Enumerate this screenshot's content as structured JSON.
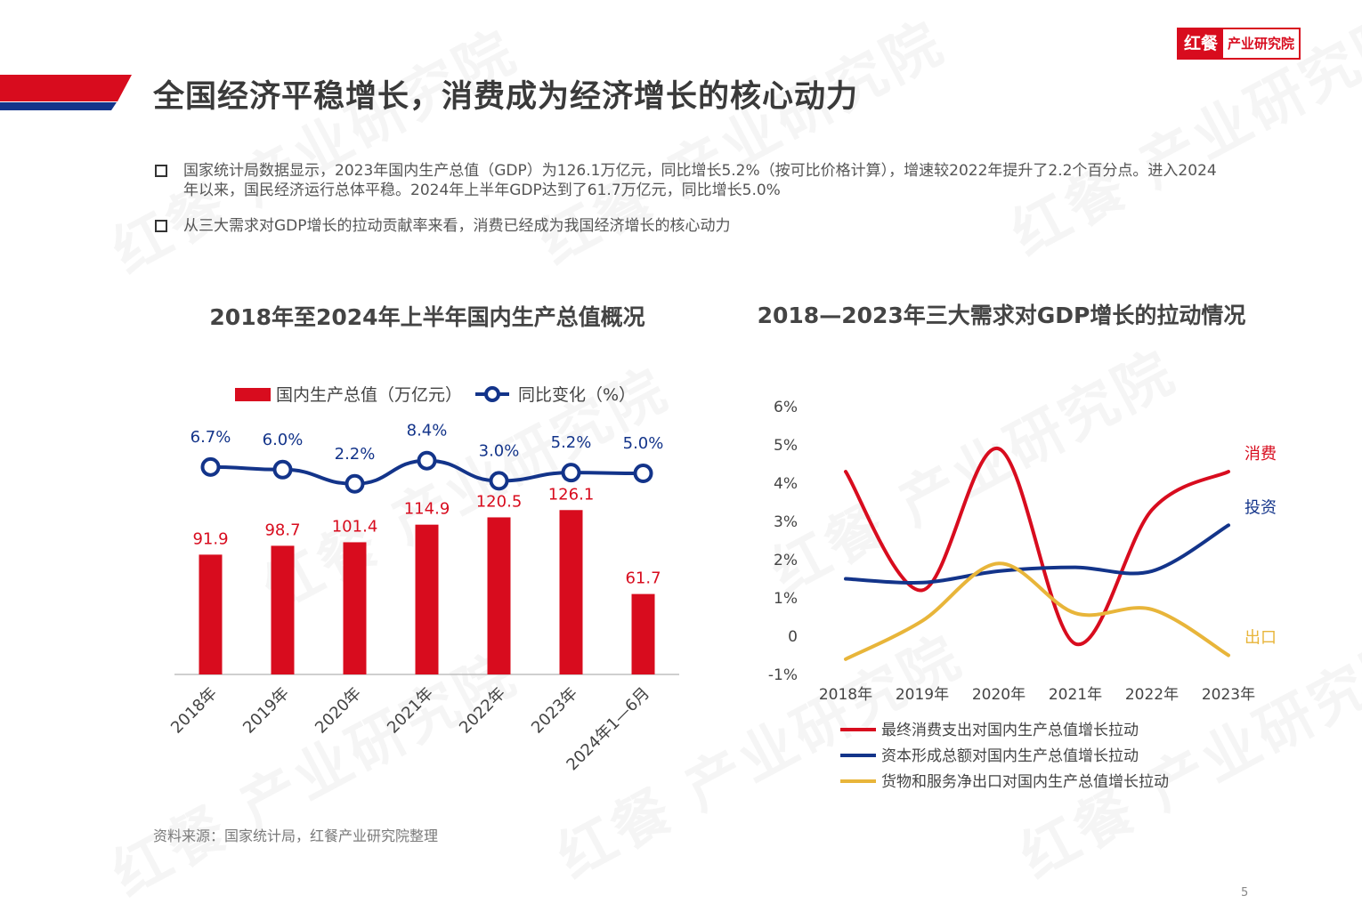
{
  "brand": {
    "mark": "红餐",
    "name": "产业研究院",
    "watermark": "红餐 产业研究院"
  },
  "page_title": "全国经济平稳增长，消费成为经济增长的核心动力",
  "bullets": [
    "国家统计局数据显示，2023年国内生产总值（GDP）为126.1万亿元，同比增长5.2%（按可比价格计算），增速较2022年提升了2.2个百分点。进入2024年以来，国民经济运行总体平稳。2024年上半年GDP达到了61.7万亿元，同比增长5.0%",
    "从三大需求对GDP增长的拉动贡献率来看，消费已经成为我国经济增长的核心动力"
  ],
  "colors": {
    "accent_red": "#d80c1e",
    "navy": "#13348a",
    "gold": "#e8b53a",
    "text": "#3a3a3a"
  },
  "chart_data": [
    {
      "type": "bar",
      "title": "2018年至2024年上半年国内生产总值概况",
      "categories": [
        "2018年",
        "2019年",
        "2020年",
        "2021年",
        "2022年",
        "2023年",
        "2024年1—6月"
      ],
      "series": [
        {
          "name": "国内生产总值（万亿元）",
          "type": "bar",
          "color": "#d80c1e",
          "values": [
            91.9,
            98.7,
            101.4,
            114.9,
            120.5,
            126.1,
            61.7
          ],
          "labels": [
            "91.9",
            "98.7",
            "101.4",
            "114.9",
            "120.5",
            "126.1",
            "61.7"
          ]
        },
        {
          "name": "同比变化（%）",
          "type": "line",
          "color": "#13348a",
          "values": [
            6.7,
            6.0,
            2.2,
            8.4,
            3.0,
            5.2,
            5.0
          ],
          "labels": [
            "6.7%",
            "6.0%",
            "2.2%",
            "8.4%",
            "3.0%",
            "5.2%",
            "5.0%"
          ]
        }
      ],
      "legend_position": "top"
    },
    {
      "type": "line",
      "title": "2018—2023年三大需求对GDP增长的拉动情况",
      "x": [
        "2018年",
        "2019年",
        "2020年",
        "2021年",
        "2022年",
        "2023年"
      ],
      "y_ticks": [
        "6%",
        "5%",
        "4%",
        "3%",
        "2%",
        "1%",
        "0",
        "-1%"
      ],
      "ylim": [
        -1,
        6
      ],
      "series": [
        {
          "name": "最终消费支出对国内生产总值增长拉动",
          "end_label": "消费",
          "color": "#d80c1e",
          "values": [
            4.3,
            1.2,
            4.9,
            -0.2,
            3.3,
            4.3
          ]
        },
        {
          "name": "资本形成总额对国内生产总值增长拉动",
          "end_label": "投资",
          "color": "#13348a",
          "values": [
            1.5,
            1.4,
            1.7,
            1.8,
            1.7,
            2.9
          ]
        },
        {
          "name": "货物和服务净出口对国内生产总值增长拉动",
          "end_label": "出口",
          "color": "#e8b53a",
          "values": [
            -0.6,
            0.4,
            1.9,
            0.6,
            0.7,
            -0.5
          ]
        }
      ],
      "legend_position": "bottom"
    }
  ],
  "source": "资料来源：国家统计局，红餐产业研究院整理",
  "page_number": "5"
}
